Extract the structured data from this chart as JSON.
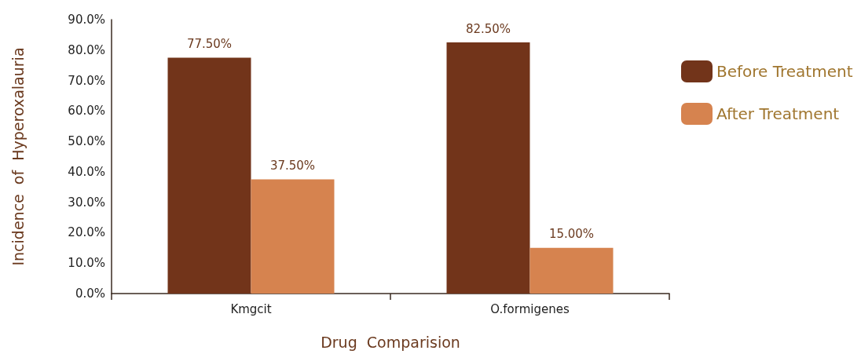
{
  "chart_data": {
    "type": "bar",
    "xlabel": "Drug  Comparision",
    "ylabel": "Incidence  of  Hyperoxalauria",
    "categories": [
      "Kmgcit",
      "O.formigenes"
    ],
    "series": [
      {
        "name": "Before Treatment",
        "color": "#72341a",
        "values": [
          77.5,
          82.5
        ],
        "value_labels": [
          "77.50%",
          "82.50%"
        ]
      },
      {
        "name": "After Treatment",
        "color": "#d6834f",
        "values": [
          37.5,
          15.0
        ],
        "value_labels": [
          "37.50%",
          "15.00%"
        ]
      }
    ],
    "ylim": [
      0,
      90
    ],
    "yticks": [
      {
        "value": 0,
        "label": "0.0%"
      },
      {
        "value": 10,
        "label": "10.0%"
      },
      {
        "value": 20,
        "label": "20.0%"
      },
      {
        "value": 30,
        "label": "30.0%"
      },
      {
        "value": 40,
        "label": "40.0%"
      },
      {
        "value": 50,
        "label": "50.0%"
      },
      {
        "value": 60,
        "label": "60.0%"
      },
      {
        "value": 70,
        "label": "70.0%"
      },
      {
        "value": 80,
        "label": "80.0%"
      },
      {
        "value": 90,
        "label": "90.0%"
      }
    ],
    "grid": false,
    "legend": "right"
  }
}
